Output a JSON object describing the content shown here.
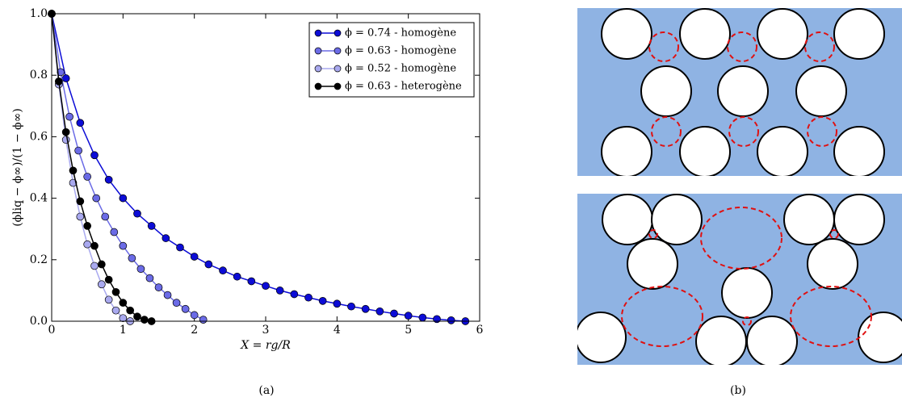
{
  "chart_data": {
    "type": "line",
    "xlabel": "X = rg/R",
    "ylabel": "(ϕliq − ϕ∞)/(1 − ϕ∞)",
    "caption": "(a)",
    "xlim": [
      0,
      6
    ],
    "xticks": [
      0,
      1,
      2,
      3,
      4,
      5,
      6
    ],
    "ylim": [
      0,
      1
    ],
    "yticks": [
      {
        "value": 0,
        "label": "0.0"
      },
      0.2,
      0.4,
      0.6,
      0.8,
      {
        "value": 1,
        "label": "1.0"
      }
    ],
    "legend": "upper right",
    "series": [
      {
        "name": "ϕ = 0.74 - homogène",
        "color": "#0c0cd6",
        "x": [
          0,
          0.2,
          0.4,
          0.6,
          0.8,
          1.0,
          1.2,
          1.4,
          1.6,
          1.8,
          2.0,
          2.2,
          2.4,
          2.6,
          2.8,
          3.0,
          3.2,
          3.4,
          3.6,
          3.8,
          4.0,
          4.2,
          4.4,
          4.6,
          4.8,
          5.0,
          5.2,
          5.4,
          5.6,
          5.8
        ],
        "values": [
          1.0,
          0.79,
          0.645,
          0.54,
          0.46,
          0.4,
          0.35,
          0.31,
          0.27,
          0.24,
          0.21,
          0.185,
          0.165,
          0.145,
          0.13,
          0.115,
          0.1,
          0.088,
          0.077,
          0.066,
          0.057,
          0.048,
          0.04,
          0.032,
          0.025,
          0.018,
          0.012,
          0.007,
          0.003,
          0.0
        ]
      },
      {
        "name": "ϕ = 0.63 - homogène",
        "color": "#6b6be6",
        "x": [
          0,
          0.125,
          0.25,
          0.375,
          0.5,
          0.625,
          0.75,
          0.875,
          1.0,
          1.125,
          1.25,
          1.375,
          1.5,
          1.625,
          1.75,
          1.875,
          2.0,
          2.125
        ],
        "values": [
          1.0,
          0.81,
          0.665,
          0.555,
          0.47,
          0.4,
          0.34,
          0.29,
          0.245,
          0.205,
          0.17,
          0.14,
          0.11,
          0.085,
          0.06,
          0.04,
          0.02,
          0.005
        ]
      },
      {
        "name": "ϕ = 0.52 - homogène",
        "color": "#a9a9ef",
        "x": [
          0,
          0.1,
          0.2,
          0.3,
          0.4,
          0.5,
          0.6,
          0.7,
          0.8,
          0.9,
          1.0,
          1.1
        ],
        "values": [
          1.0,
          0.77,
          0.59,
          0.45,
          0.34,
          0.25,
          0.18,
          0.12,
          0.07,
          0.035,
          0.01,
          0.0
        ]
      },
      {
        "name": "ϕ = 0.63 - heterogène",
        "color": "#000000",
        "x": [
          0,
          0.1,
          0.2,
          0.3,
          0.4,
          0.5,
          0.6,
          0.7,
          0.8,
          0.9,
          1.0,
          1.1,
          1.2,
          1.3,
          1.4
        ],
        "values": [
          1.0,
          0.78,
          0.615,
          0.49,
          0.39,
          0.31,
          0.245,
          0.185,
          0.135,
          0.095,
          0.06,
          0.035,
          0.015,
          0.005,
          0.0
        ]
      }
    ]
  },
  "diagram": {
    "caption": "(b)"
  }
}
